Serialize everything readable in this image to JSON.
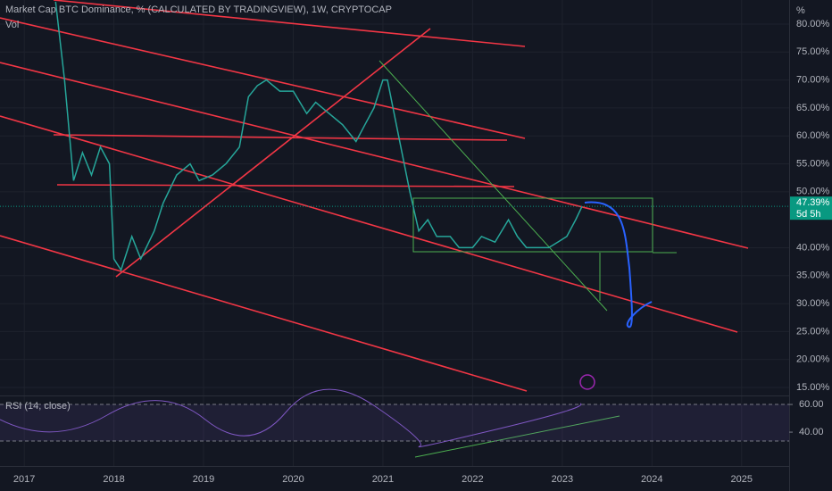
{
  "chart_data": {
    "type": "line",
    "title": "Market Cap BTC Dominance, % (CALCULATED BY TRADINGVIEW), 1W, CRYPTOCAP",
    "subtitle": "Vol",
    "y_unit": "%",
    "color": "#26a69a",
    "x": [
      2017.35,
      2017.45,
      2017.55,
      2017.65,
      2017.75,
      2017.85,
      2017.95,
      2018.0,
      2018.08,
      2018.2,
      2018.3,
      2018.45,
      2018.55,
      2018.7,
      2018.85,
      2018.95,
      2019.1,
      2019.25,
      2019.4,
      2019.5,
      2019.6,
      2019.7,
      2019.85,
      2020.0,
      2020.15,
      2020.25,
      2020.4,
      2020.55,
      2020.7,
      2020.8,
      2020.9,
      2021.0,
      2021.05,
      2021.15,
      2021.3,
      2021.4,
      2021.5,
      2021.6,
      2021.75,
      2021.85,
      2022.0,
      2022.1,
      2022.25,
      2022.4,
      2022.5,
      2022.6,
      2022.75,
      2022.85,
      2022.95,
      2023.05,
      2023.15,
      2023.22
    ],
    "values": [
      84,
      70,
      52,
      57,
      53,
      58,
      55,
      38,
      36,
      42,
      38,
      43,
      48,
      53,
      55,
      52,
      53,
      55,
      58,
      67,
      69,
      70,
      68,
      68,
      64,
      66,
      64,
      62,
      59,
      62,
      65,
      70,
      70,
      62,
      50,
      43,
      45,
      42,
      42,
      40,
      40,
      42,
      41,
      45,
      42,
      40,
      40,
      40,
      41,
      42,
      45,
      47.39
    ],
    "xlim": [
      2016.73,
      2025.53
    ],
    "xticks": [
      2017,
      2018,
      2019,
      2020,
      2021,
      2022,
      2023,
      2024,
      2025
    ],
    "ylim": [
      14.04,
      84.31
    ],
    "yticks": [
      {
        "value": 80,
        "label": "80.00%"
      },
      {
        "value": 75,
        "label": "75.00%"
      },
      {
        "value": 70,
        "label": "70.00%"
      },
      {
        "value": 65,
        "label": "65.00%"
      },
      {
        "value": 60,
        "label": "60.00%"
      },
      {
        "value": 55,
        "label": "55.00%"
      },
      {
        "value": 50,
        "label": "50.00%"
      },
      {
        "value": 40,
        "label": "40.00%"
      },
      {
        "value": 35,
        "label": "35.00%"
      },
      {
        "value": 30,
        "label": "30.00%"
      },
      {
        "value": 25,
        "label": "25.00%"
      },
      {
        "value": 20,
        "label": "20.00%"
      },
      {
        "value": 15,
        "label": "15.00%"
      }
    ],
    "last_price": {
      "value": 47.39,
      "label": "47.39%"
    },
    "countdown": "5d 5h",
    "rsi": {
      "title": "RSI (14, close)",
      "ylim": [
        16.8,
        66.5
      ],
      "yticks": [
        {
          "value": 60,
          "label": "60.00"
        },
        {
          "value": 40,
          "label": "40.00"
        }
      ]
    }
  }
}
